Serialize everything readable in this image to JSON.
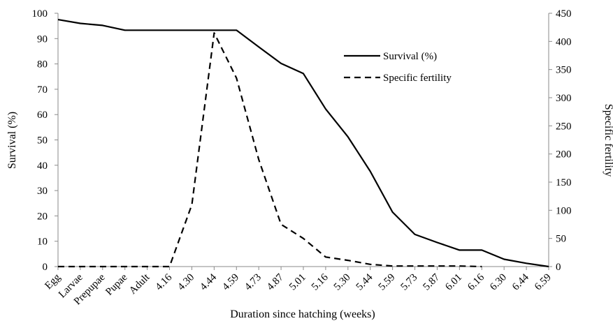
{
  "chart_data": {
    "type": "line",
    "title": "",
    "xlabel": "Duration since hatching (weeks)",
    "ylabel": "Survival (%)",
    "y2label": "Specific fertility",
    "categories": [
      "Egg",
      "Larvae",
      "Prepupae",
      "Pupae",
      "Adult",
      "4.16",
      "4.30",
      "4.44",
      "4.59",
      "4.73",
      "4.87",
      "5.01",
      "5.16",
      "5.30",
      "5.44",
      "5.59",
      "5.73",
      "5.87",
      "6.01",
      "6.16",
      "6.30",
      "6.44",
      "6.59"
    ],
    "ylim": [
      0,
      100
    ],
    "y2lim": [
      0,
      450
    ],
    "yticks": [
      "0",
      "10",
      "20",
      "30",
      "40",
      "50",
      "60",
      "70",
      "80",
      "90",
      "100"
    ],
    "y2ticks": [
      "0",
      "50",
      "100",
      "150",
      "200",
      "250",
      "300",
      "350",
      "400",
      "450"
    ],
    "series": [
      {
        "name": "Survival (%)",
        "axis": "left",
        "style": "solid",
        "color": "#000000",
        "values": [
          97.5,
          96,
          95.2,
          93.3,
          93.3,
          93.3,
          93.3,
          93.3,
          93.3,
          86.7,
          80.2,
          76.2,
          62.2,
          51.2,
          37.6,
          21.5,
          12.7,
          9.5,
          6.5,
          6.5,
          2.9,
          1.3,
          0
        ]
      },
      {
        "name": "Specific fertility",
        "axis": "right",
        "style": "dashed",
        "color": "#000000",
        "values": [
          0,
          0,
          0,
          0,
          0,
          0,
          110,
          415,
          335,
          190,
          75,
          50,
          17,
          11,
          4,
          1,
          1,
          1,
          1,
          0,
          null,
          null,
          null
        ]
      }
    ],
    "legend_position": "top-right",
    "grid": false
  }
}
